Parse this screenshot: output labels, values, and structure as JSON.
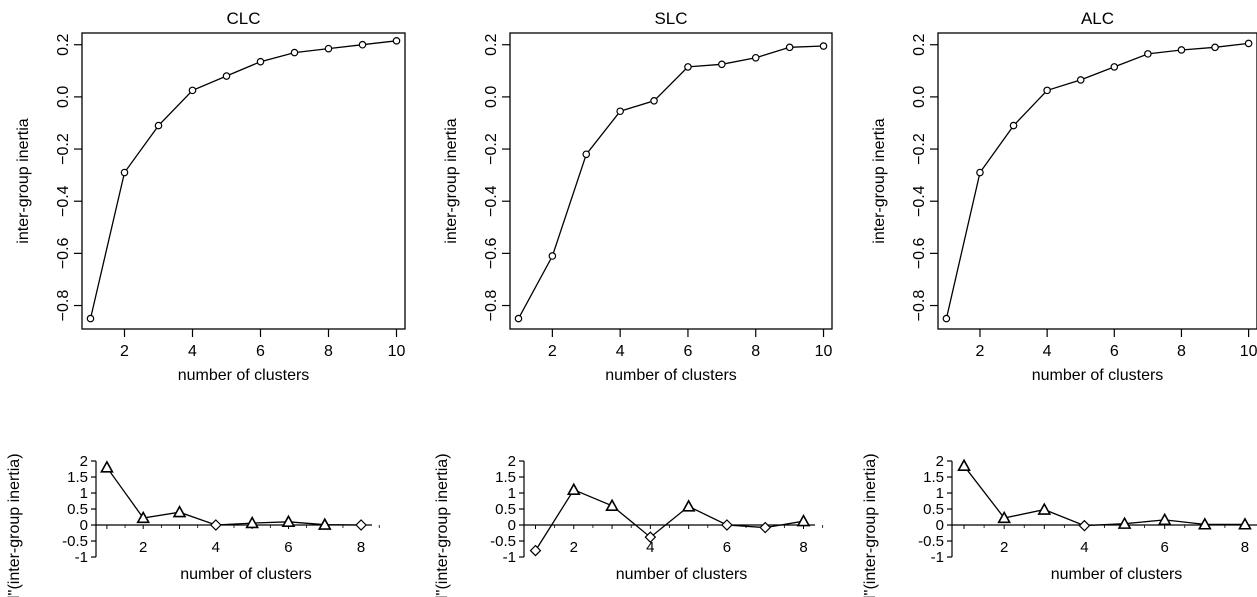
{
  "chart_data": [
    {
      "type": "line",
      "title": "CLC",
      "xlabel": "number of clusters",
      "ylabel": "inter-group inertia",
      "x": [
        1,
        2,
        3,
        4,
        5,
        6,
        7,
        8,
        9,
        10
      ],
      "y": [
        -0.85,
        -0.29,
        -0.11,
        0.025,
        0.08,
        0.135,
        0.17,
        0.185,
        0.2,
        0.215
      ],
      "marker": "circle",
      "xticks": [
        2,
        4,
        6,
        8,
        10
      ],
      "yticks": [
        -0.8,
        -0.6,
        -0.4,
        -0.2,
        0.0,
        0.2
      ],
      "ytick_labels": [
        "−0.8",
        "−0.6",
        "−0.4",
        "−0.2",
        "0.0",
        "0.2"
      ],
      "xlim": [
        0.75,
        10.25
      ],
      "ylim": [
        -0.89,
        0.245
      ]
    },
    {
      "type": "line",
      "title": "SLC",
      "xlabel": "number of clusters",
      "ylabel": "inter-group inertia",
      "x": [
        1,
        2,
        3,
        4,
        5,
        6,
        7,
        8,
        9,
        10
      ],
      "y": [
        -0.85,
        -0.61,
        -0.22,
        -0.055,
        -0.015,
        0.115,
        0.125,
        0.15,
        0.19,
        0.195
      ],
      "marker": "circle",
      "xticks": [
        2,
        4,
        6,
        8,
        10
      ],
      "yticks": [
        -0.8,
        -0.6,
        -0.4,
        -0.2,
        0.0,
        0.2
      ],
      "ytick_labels": [
        "−0.8",
        "−0.6",
        "−0.4",
        "−0.2",
        "0.0",
        "0.2"
      ],
      "xlim": [
        0.75,
        10.25
      ],
      "ylim": [
        -0.89,
        0.245
      ]
    },
    {
      "type": "line",
      "title": "ALC",
      "xlabel": "number of clusters",
      "ylabel": "inter-group inertia",
      "x": [
        1,
        2,
        3,
        4,
        5,
        6,
        7,
        8,
        9,
        10
      ],
      "y": [
        -0.85,
        -0.29,
        -0.11,
        0.025,
        0.065,
        0.115,
        0.165,
        0.18,
        0.19,
        0.205
      ],
      "marker": "circle",
      "xticks": [
        2,
        4,
        6,
        8,
        10
      ],
      "yticks": [
        -0.8,
        -0.6,
        -0.4,
        -0.2,
        0.0,
        0.2
      ],
      "ytick_labels": [
        "−0.8",
        "−0.6",
        "−0.4",
        "−0.2",
        "0.0",
        "0.2"
      ],
      "xlim": [
        0.75,
        10.25
      ],
      "ylim": [
        -0.89,
        0.245
      ]
    },
    {
      "type": "line",
      "title": "",
      "xlabel": "number of clusters",
      "ylabel": "d''(inter-group inertia)",
      "x": [
        1,
        2,
        3,
        4,
        5,
        6,
        7,
        8
      ],
      "y": [
        1.8,
        0.22,
        0.4,
        0.0,
        0.06,
        0.1,
        0.01,
        0.0
      ],
      "markers": [
        "triangle",
        "triangle",
        "triangle",
        "diamond",
        "triangle",
        "triangle",
        "triangle",
        "diamond"
      ],
      "xticks": [
        2,
        4,
        6,
        8
      ],
      "yticks": [
        2,
        1.5,
        1,
        0.5,
        0,
        -0.5,
        -1
      ],
      "ytick_labels": [
        "2",
        "1.5",
        "1",
        "0.5",
        "0",
        "-0.5",
        "-1"
      ],
      "xlim": [
        0.7,
        8.3
      ],
      "ylim": [
        -1,
        2
      ]
    },
    {
      "type": "line",
      "title": "",
      "xlabel": "number of clusters",
      "ylabel": "d''(inter-group inertia)",
      "x": [
        1,
        2,
        3,
        4,
        5,
        6,
        7,
        8
      ],
      "y": [
        -0.8,
        1.1,
        0.6,
        -0.38,
        0.58,
        0.0,
        -0.08,
        0.12
      ],
      "markers": [
        "diamond",
        "triangle",
        "triangle",
        "diamond",
        "triangle",
        "diamond",
        "diamond",
        "triangle"
      ],
      "xticks": [
        2,
        4,
        6,
        8
      ],
      "yticks": [
        2,
        1.5,
        1,
        0.5,
        0,
        -0.5,
        -1
      ],
      "ytick_labels": [
        "2",
        "1.5",
        "1",
        "0.5",
        "0",
        "-0.5",
        "-1"
      ],
      "xlim": [
        0.7,
        8.3
      ],
      "ylim": [
        -1,
        2
      ]
    },
    {
      "type": "line",
      "title": "",
      "xlabel": "number of clusters",
      "ylabel": "d''(inter-group inertia)",
      "x": [
        1,
        2,
        3,
        4,
        5,
        6,
        7,
        8
      ],
      "y": [
        1.85,
        0.22,
        0.48,
        -0.02,
        0.04,
        0.16,
        0.02,
        0.02
      ],
      "markers": [
        "triangle",
        "triangle",
        "triangle",
        "diamond",
        "triangle",
        "triangle",
        "triangle",
        "triangle"
      ],
      "xticks": [
        2,
        4,
        6,
        8
      ],
      "yticks": [
        2,
        1.5,
        1,
        0.5,
        0,
        -0.5,
        -1
      ],
      "ytick_labels": [
        "2",
        "1.5",
        "1",
        "0.5",
        "0",
        "-0.5",
        "-1"
      ],
      "xlim": [
        0.7,
        8.3
      ],
      "ylim": [
        -1,
        2
      ]
    }
  ]
}
